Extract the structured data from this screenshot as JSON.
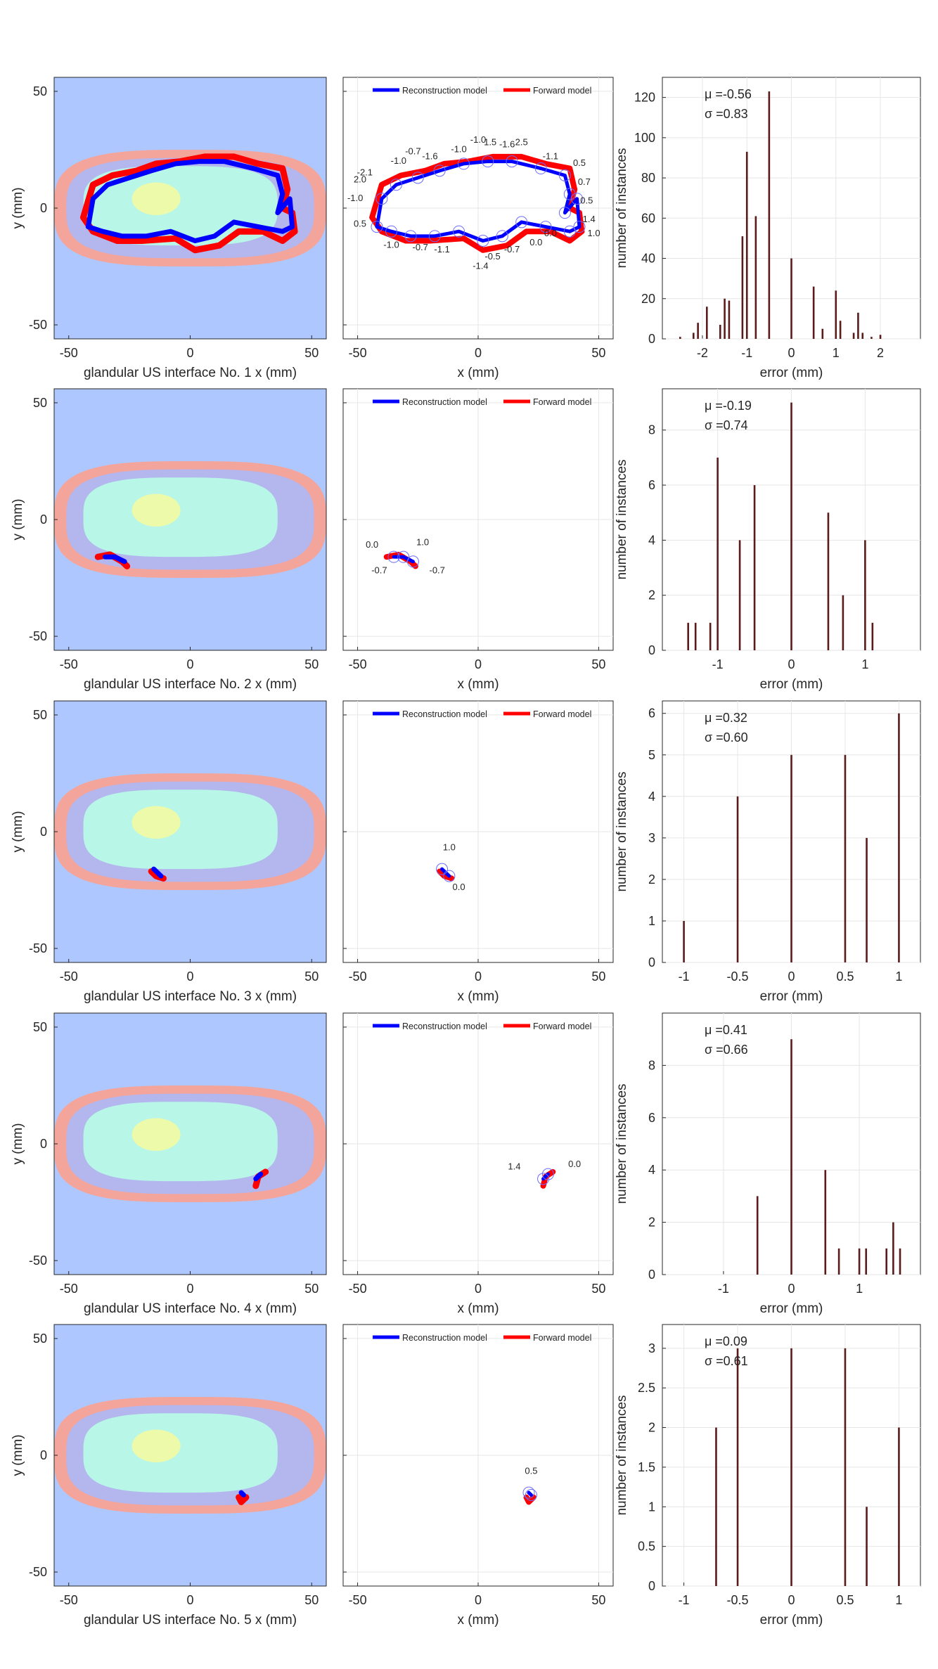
{
  "legend": {
    "reconstruction_label": "Reconstruction model",
    "forward_label": "Forward model",
    "reconstruction_color": "#0000ff",
    "forward_color": "#ff0000"
  },
  "colors": {
    "background": "#aec8ff",
    "outer_ring": "#f3a59c",
    "fat": "#b4b6ee",
    "glandular": "#b8f6e8",
    "tumor": "#ecfaaa",
    "bar": "#5a1b1b"
  },
  "rows": [
    {
      "xlabel": "glandular US interface No. 1 x (mm)",
      "ylabel": "y (mm)",
      "xlabel2": "x (mm)",
      "hist_ylabel": "number of instances",
      "hist_xlabel": "error (mm)",
      "mu": "μ =-0.56",
      "sigma": "σ =0.83"
    },
    {
      "xlabel": "glandular US interface No. 2 x (mm)",
      "ylabel": "y (mm)",
      "xlabel2": "x (mm)",
      "hist_ylabel": "number of instances",
      "hist_xlabel": "error (mm)",
      "mu": "μ =-0.19",
      "sigma": "σ =0.74"
    },
    {
      "xlabel": "glandular US interface No. 3 x (mm)",
      "ylabel": "y (mm)",
      "xlabel2": "x (mm)",
      "hist_ylabel": "number of instances",
      "hist_xlabel": "error (mm)",
      "mu": "μ =0.32",
      "sigma": "σ =0.60"
    },
    {
      "xlabel": "glandular US interface No. 4 x (mm)",
      "ylabel": "y (mm)",
      "xlabel2": "x (mm)",
      "hist_ylabel": "number of instances",
      "hist_xlabel": "error (mm)",
      "mu": "μ =0.41",
      "sigma": "σ =0.66"
    },
    {
      "xlabel": "glandular US interface No. 5 x (mm)",
      "ylabel": "y (mm)",
      "xlabel2": "x (mm)",
      "hist_ylabel": "number of instances",
      "hist_xlabel": "error (mm)",
      "mu": "μ =0.09",
      "sigma": "σ =0.61"
    }
  ],
  "chart_data": [
    {
      "type": "heatmap",
      "row": 1,
      "xlim": [
        -56,
        56
      ],
      "ylim": [
        -56,
        56
      ],
      "xticks": [
        -50,
        0,
        50
      ],
      "yticks": [
        -50,
        0,
        50
      ],
      "reconstruction": [
        [
          -42,
          -8
        ],
        [
          -40,
          4
        ],
        [
          -34,
          10
        ],
        [
          -25,
          13
        ],
        [
          -16,
          16
        ],
        [
          -6,
          19
        ],
        [
          4,
          20
        ],
        [
          14,
          20
        ],
        [
          26,
          17
        ],
        [
          36,
          14
        ],
        [
          38,
          6
        ],
        [
          36,
          -2
        ],
        [
          41,
          4
        ],
        [
          42,
          -8
        ],
        [
          38,
          -10
        ],
        [
          28,
          -8
        ],
        [
          18,
          -6
        ],
        [
          10,
          -12
        ],
        [
          2,
          -14
        ],
        [
          -8,
          -10
        ],
        [
          -18,
          -12
        ],
        [
          -28,
          -12
        ],
        [
          -36,
          -10
        ]
      ],
      "forward": [
        [
          -44,
          -4
        ],
        [
          -40,
          10
        ],
        [
          -32,
          14
        ],
        [
          -22,
          16
        ],
        [
          -14,
          19
        ],
        [
          -4,
          20
        ],
        [
          6,
          22
        ],
        [
          18,
          22
        ],
        [
          28,
          19
        ],
        [
          38,
          17
        ],
        [
          40,
          8
        ],
        [
          38,
          0
        ],
        [
          42,
          -2
        ],
        [
          43,
          -10
        ],
        [
          38,
          -14
        ],
        [
          30,
          -10
        ],
        [
          20,
          -10
        ],
        [
          12,
          -16
        ],
        [
          2,
          -18
        ],
        [
          -6,
          -13
        ],
        [
          -20,
          -14
        ],
        [
          -30,
          -14
        ],
        [
          -40,
          -10
        ]
      ]
    },
    {
      "type": "line",
      "row": 1,
      "xlim": [
        -56,
        56
      ],
      "ylim": [
        -56,
        56
      ],
      "xticks": [
        -50,
        0,
        50
      ],
      "legend": [
        "Reconstruction model",
        "Forward model"
      ],
      "annotations": [
        {
          "x": -27,
          "y": 23,
          "text": "-0.7"
        },
        {
          "x": -33,
          "y": 19,
          "text": "-1.0"
        },
        {
          "x": -20,
          "y": 21,
          "text": "-1.6"
        },
        {
          "x": -8,
          "y": 24,
          "text": "-1.0"
        },
        {
          "x": 0,
          "y": 28,
          "text": "-1.0"
        },
        {
          "x": 5,
          "y": 27,
          "text": "1.5"
        },
        {
          "x": 12,
          "y": 26,
          "text": "-1.6"
        },
        {
          "x": 18,
          "y": 27,
          "text": "2.5"
        },
        {
          "x": 30,
          "y": 21,
          "text": "-1.1"
        },
        {
          "x": 42,
          "y": 18,
          "text": "0.5"
        },
        {
          "x": 44,
          "y": 10,
          "text": "0.7"
        },
        {
          "x": 45,
          "y": 2,
          "text": "0.5"
        },
        {
          "x": 46,
          "y": -6,
          "text": "1.4"
        },
        {
          "x": 48,
          "y": -12,
          "text": "1.0"
        },
        {
          "x": 30,
          "y": -12,
          "text": "0.0"
        },
        {
          "x": 24,
          "y": -16,
          "text": "0.0"
        },
        {
          "x": 14,
          "y": -19,
          "text": "-0.7"
        },
        {
          "x": 6,
          "y": -22,
          "text": "-0.5"
        },
        {
          "x": 1,
          "y": -26,
          "text": "-1.4"
        },
        {
          "x": -15,
          "y": -19,
          "text": "-1.1"
        },
        {
          "x": -24,
          "y": -18,
          "text": "-0.7"
        },
        {
          "x": -36,
          "y": -17,
          "text": "-1.0"
        },
        {
          "x": -49,
          "y": -8,
          "text": "0.5"
        },
        {
          "x": -51,
          "y": 3,
          "text": "-1.0"
        },
        {
          "x": -49,
          "y": 11,
          "text": "2.0"
        },
        {
          "x": -47,
          "y": 14,
          "text": "-2.1"
        }
      ]
    },
    {
      "type": "bar",
      "row": 1,
      "xlim": [
        -2.9,
        2.9
      ],
      "ylim": [
        0,
        130
      ],
      "xticks": [
        -2,
        -1,
        0,
        1,
        2
      ],
      "yticks": [
        0,
        20,
        40,
        60,
        80,
        100,
        120
      ],
      "xlabel": "error (mm)",
      "ylabel": "number of instances",
      "x": [
        -2.5,
        -2.2,
        -2.1,
        -1.9,
        -1.6,
        -1.5,
        -1.4,
        -1.1,
        -1.0,
        -0.8,
        -0.5,
        0.0,
        0.5,
        0.7,
        1.0,
        1.1,
        1.4,
        1.5,
        1.6,
        1.8,
        2.0
      ],
      "values": [
        1,
        3,
        8,
        16,
        7,
        20,
        19,
        51,
        93,
        61,
        123,
        40,
        26,
        5,
        24,
        9,
        3,
        13,
        3,
        1,
        2
      ]
    },
    {
      "type": "heatmap",
      "row": 2,
      "xlim": [
        -56,
        56
      ],
      "ylim": [
        -56,
        56
      ],
      "xticks": [
        -50,
        0,
        50
      ],
      "yticks": [
        -50,
        0,
        50
      ],
      "reconstruction": [
        [
          -35,
          -16
        ],
        [
          -31,
          -16
        ],
        [
          -27,
          -18
        ]
      ],
      "forward": [
        [
          -38,
          -16
        ],
        [
          -33,
          -15
        ],
        [
          -28,
          -18
        ],
        [
          -26,
          -20
        ]
      ]
    },
    {
      "type": "line",
      "row": 2,
      "xlim": [
        -56,
        56
      ],
      "ylim": [
        -56,
        56
      ],
      "xticks": [
        -50,
        0,
        50
      ],
      "legend": [
        "Reconstruction model",
        "Forward model"
      ],
      "annotations": [
        {
          "x": -44,
          "y": -12,
          "text": "0.0"
        },
        {
          "x": -23,
          "y": -11,
          "text": "1.0"
        },
        {
          "x": -41,
          "y": -23,
          "text": "-0.7"
        },
        {
          "x": -17,
          "y": -23,
          "text": "-0.7"
        }
      ]
    },
    {
      "type": "bar",
      "row": 2,
      "xlim": [
        -1.75,
        1.75
      ],
      "ylim": [
        0,
        9.5
      ],
      "xticks": [
        -1,
        0,
        1
      ],
      "yticks": [
        0,
        2,
        4,
        6,
        8
      ],
      "xlabel": "error (mm)",
      "ylabel": "number of instances",
      "x": [
        -1.4,
        -1.3,
        -1.1,
        -1.0,
        -0.7,
        -0.5,
        0.0,
        0.5,
        0.7,
        1.0,
        1.1
      ],
      "values": [
        1,
        1,
        1,
        7,
        4,
        6,
        9,
        5,
        2,
        4,
        1
      ]
    },
    {
      "type": "heatmap",
      "row": 3,
      "xlim": [
        -56,
        56
      ],
      "ylim": [
        -56,
        56
      ],
      "xticks": [
        -50,
        0,
        50
      ],
      "yticks": [
        -50,
        0,
        50
      ],
      "reconstruction": [
        [
          -15,
          -16
        ],
        [
          -12,
          -19
        ]
      ],
      "forward": [
        [
          -16,
          -17
        ],
        [
          -14,
          -19
        ],
        [
          -11,
          -20
        ]
      ]
    },
    {
      "type": "line",
      "row": 3,
      "xlim": [
        -56,
        56
      ],
      "ylim": [
        -56,
        56
      ],
      "xticks": [
        -50,
        0,
        50
      ],
      "legend": [
        "Reconstruction model",
        "Forward model"
      ],
      "annotations": [
        {
          "x": -12,
          "y": -8,
          "text": "1.0"
        },
        {
          "x": -8,
          "y": -25,
          "text": "0.0"
        }
      ]
    },
    {
      "type": "bar",
      "row": 3,
      "xlim": [
        -1.2,
        1.2
      ],
      "ylim": [
        0,
        6.3
      ],
      "xticks": [
        -1,
        -0.5,
        0,
        0.5,
        1
      ],
      "yticks": [
        0,
        1,
        2,
        3,
        4,
        5,
        6
      ],
      "xlabel": "error (mm)",
      "ylabel": "number of instances",
      "x": [
        -1.0,
        -0.5,
        0.0,
        0.5,
        0.7,
        1.0
      ],
      "values": [
        1,
        4,
        5,
        5,
        3,
        6
      ]
    },
    {
      "type": "heatmap",
      "row": 4,
      "xlim": [
        -56,
        56
      ],
      "ylim": [
        -56,
        56
      ],
      "xticks": [
        -50,
        0,
        50
      ],
      "yticks": [
        -50,
        0,
        50
      ],
      "reconstruction": [
        [
          27,
          -15
        ],
        [
          29,
          -13
        ]
      ],
      "forward": [
        [
          27,
          -18
        ],
        [
          28,
          -14
        ],
        [
          31,
          -12
        ]
      ]
    },
    {
      "type": "line",
      "row": 4,
      "xlim": [
        -56,
        56
      ],
      "ylim": [
        -56,
        56
      ],
      "xticks": [
        -50,
        0,
        50
      ],
      "legend": [
        "Reconstruction model",
        "Forward model"
      ],
      "annotations": [
        {
          "x": 15,
          "y": -11,
          "text": "1.4"
        },
        {
          "x": 40,
          "y": -10,
          "text": "0.0"
        }
      ]
    },
    {
      "type": "bar",
      "row": 4,
      "xlim": [
        -1.9,
        1.9
      ],
      "ylim": [
        0,
        10
      ],
      "xticks": [
        -1,
        0,
        1
      ],
      "yticks": [
        0,
        2,
        4,
        6,
        8
      ],
      "xlabel": "error (mm)",
      "ylabel": "number of instances",
      "x": [
        -0.5,
        0.0,
        0.5,
        0.7,
        1.0,
        1.1,
        1.4,
        1.5,
        1.6
      ],
      "values": [
        3,
        9,
        4,
        1,
        1,
        1,
        1,
        2,
        1
      ]
    },
    {
      "type": "heatmap",
      "row": 5,
      "xlim": [
        -56,
        56
      ],
      "ylim": [
        -56,
        56
      ],
      "xticks": [
        -50,
        0,
        50
      ],
      "yticks": [
        -50,
        0,
        50
      ],
      "reconstruction": [
        [
          21,
          -16
        ],
        [
          22,
          -17
        ]
      ],
      "forward": [
        [
          20,
          -18
        ],
        [
          21,
          -20
        ],
        [
          23,
          -18
        ]
      ]
    },
    {
      "type": "line",
      "row": 5,
      "xlim": [
        -56,
        56
      ],
      "ylim": [
        -56,
        56
      ],
      "xticks": [
        -50,
        0,
        50
      ],
      "legend": [
        "Reconstruction model",
        "Forward model"
      ],
      "annotations": [
        {
          "x": 22,
          "y": -8,
          "text": "0.5"
        }
      ]
    },
    {
      "type": "bar",
      "row": 5,
      "xlim": [
        -1.2,
        1.2
      ],
      "ylim": [
        0,
        3.3
      ],
      "xticks": [
        -1,
        -0.5,
        0,
        0.5,
        1
      ],
      "yticks": [
        0,
        0.5,
        1,
        1.5,
        2,
        2.5,
        3
      ],
      "xlabel": "error (mm)",
      "ylabel": "number of instances",
      "x": [
        -0.7,
        -0.5,
        0.0,
        0.5,
        0.7,
        1.0
      ],
      "values": [
        2,
        3,
        3,
        3,
        1,
        2
      ]
    }
  ]
}
